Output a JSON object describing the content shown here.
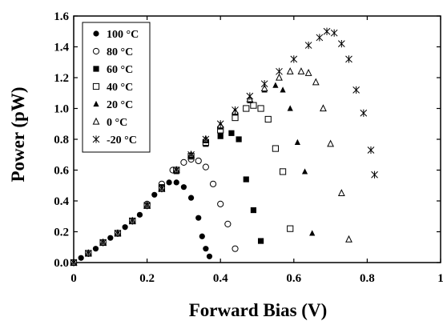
{
  "chart_data": {
    "type": "scatter",
    "title": "",
    "xlabel": "Forward Bias (V)",
    "ylabel": "Power (pW)",
    "xlim": [
      0,
      1
    ],
    "ylim": [
      0,
      1.6
    ],
    "x_ticks": [
      "0",
      "0.2",
      "0.4",
      "0.6",
      "0.8",
      "1"
    ],
    "y_ticks": [
      "0.0",
      "0.2",
      "0.4",
      "0.6",
      "0.8",
      "1.0",
      "1.2",
      "1.4",
      "1.6"
    ],
    "x_tick_values": [
      0,
      0.2,
      0.4,
      0.6,
      0.8,
      1
    ],
    "y_tick_values": [
      0,
      0.2,
      0.4,
      0.6,
      0.8,
      1.0,
      1.2,
      1.4,
      1.6
    ],
    "legend_position": "top-left",
    "grid": false,
    "series": [
      {
        "name": "100 °C",
        "marker": "filled-circle",
        "x": [
          0.0,
          0.02,
          0.04,
          0.06,
          0.08,
          0.1,
          0.12,
          0.14,
          0.16,
          0.18,
          0.2,
          0.22,
          0.24,
          0.26,
          0.28,
          0.3,
          0.32,
          0.34,
          0.35,
          0.36,
          0.37
        ],
        "y": [
          0.0,
          0.03,
          0.06,
          0.09,
          0.13,
          0.16,
          0.19,
          0.23,
          0.27,
          0.31,
          0.37,
          0.44,
          0.5,
          0.52,
          0.52,
          0.49,
          0.42,
          0.29,
          0.17,
          0.09,
          0.04
        ]
      },
      {
        "name": "80 °C",
        "marker": "open-circle",
        "x": [
          0.0,
          0.04,
          0.08,
          0.12,
          0.16,
          0.2,
          0.24,
          0.27,
          0.3,
          0.32,
          0.34,
          0.36,
          0.38,
          0.4,
          0.42,
          0.44
        ],
        "y": [
          0.0,
          0.06,
          0.13,
          0.19,
          0.27,
          0.38,
          0.51,
          0.6,
          0.65,
          0.67,
          0.66,
          0.62,
          0.51,
          0.38,
          0.25,
          0.09
        ]
      },
      {
        "name": "60 °C",
        "marker": "filled-square",
        "x": [
          0.0,
          0.04,
          0.08,
          0.12,
          0.16,
          0.2,
          0.24,
          0.28,
          0.32,
          0.36,
          0.4,
          0.43,
          0.45,
          0.47,
          0.49,
          0.51
        ],
        "y": [
          0.0,
          0.06,
          0.13,
          0.19,
          0.27,
          0.37,
          0.49,
          0.6,
          0.69,
          0.77,
          0.82,
          0.84,
          0.8,
          0.54,
          0.34,
          0.14
        ]
      },
      {
        "name": "40 °C",
        "marker": "open-square",
        "x": [
          0.0,
          0.04,
          0.08,
          0.12,
          0.16,
          0.2,
          0.24,
          0.28,
          0.32,
          0.36,
          0.4,
          0.44,
          0.47,
          0.49,
          0.51,
          0.53,
          0.55,
          0.57,
          0.59
        ],
        "y": [
          0.0,
          0.06,
          0.13,
          0.19,
          0.27,
          0.37,
          0.48,
          0.6,
          0.69,
          0.78,
          0.86,
          0.94,
          1.0,
          1.02,
          1.0,
          0.93,
          0.74,
          0.59,
          0.22
        ]
      },
      {
        "name": "20 °C",
        "marker": "filled-triangle",
        "x": [
          0.0,
          0.04,
          0.08,
          0.12,
          0.16,
          0.2,
          0.24,
          0.28,
          0.32,
          0.36,
          0.4,
          0.44,
          0.48,
          0.52,
          0.55,
          0.57,
          0.59,
          0.61,
          0.63,
          0.65
        ],
        "y": [
          0.0,
          0.06,
          0.13,
          0.19,
          0.27,
          0.37,
          0.48,
          0.59,
          0.69,
          0.79,
          0.88,
          0.97,
          1.05,
          1.12,
          1.15,
          1.12,
          1.0,
          0.78,
          0.59,
          0.19
        ]
      },
      {
        "name": "0 °C",
        "marker": "open-triangle",
        "x": [
          0.0,
          0.04,
          0.08,
          0.12,
          0.16,
          0.2,
          0.24,
          0.28,
          0.32,
          0.36,
          0.4,
          0.44,
          0.48,
          0.52,
          0.56,
          0.59,
          0.62,
          0.64,
          0.66,
          0.68,
          0.7,
          0.73,
          0.75
        ],
        "y": [
          0.0,
          0.06,
          0.13,
          0.19,
          0.27,
          0.37,
          0.48,
          0.6,
          0.7,
          0.8,
          0.89,
          0.98,
          1.06,
          1.13,
          1.2,
          1.24,
          1.24,
          1.23,
          1.17,
          1.0,
          0.77,
          0.45,
          0.15
        ]
      },
      {
        "name": "-20 °C",
        "marker": "asterisk",
        "x": [
          0.0,
          0.04,
          0.08,
          0.12,
          0.16,
          0.2,
          0.24,
          0.28,
          0.32,
          0.36,
          0.4,
          0.44,
          0.48,
          0.52,
          0.56,
          0.6,
          0.64,
          0.67,
          0.69,
          0.71,
          0.73,
          0.75,
          0.77,
          0.79,
          0.81,
          0.82
        ],
        "y": [
          0.0,
          0.06,
          0.13,
          0.19,
          0.27,
          0.37,
          0.48,
          0.6,
          0.7,
          0.8,
          0.9,
          0.99,
          1.08,
          1.16,
          1.24,
          1.32,
          1.41,
          1.46,
          1.5,
          1.49,
          1.42,
          1.32,
          1.12,
          0.97,
          0.73,
          0.57
        ]
      }
    ]
  }
}
